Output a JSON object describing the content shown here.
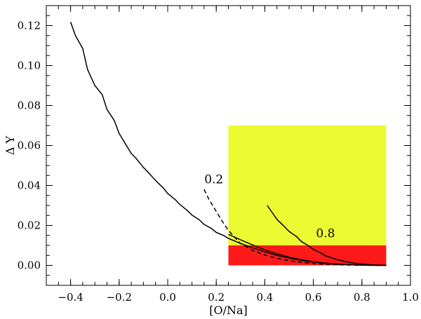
{
  "chart_data": {
    "type": "line",
    "title": "",
    "xlabel": "[O/Na]",
    "ylabel": "Δ Y",
    "xlim": [
      -0.5,
      1.0
    ],
    "ylim": [
      -0.01,
      0.13
    ],
    "xticks": [
      -0.4,
      -0.2,
      0.0,
      0.2,
      0.4,
      0.6,
      0.8,
      1.0
    ],
    "xtick_labels": [
      "−0.4",
      "−0.2",
      "0.0",
      "0.2",
      "0.4",
      "0.6",
      "0.8",
      "1.0"
    ],
    "yticks": [
      0.0,
      0.02,
      0.04,
      0.06,
      0.08,
      0.1,
      0.12
    ],
    "ytick_labels": [
      "0.00",
      "0.02",
      "0.04",
      "0.06",
      "0.08",
      "0.10",
      "0.12"
    ],
    "grid": false,
    "regions": [
      {
        "x": [
          0.25,
          0.9
        ],
        "y": [
          0.01,
          0.07
        ],
        "color": "#ecfa32"
      },
      {
        "x": [
          0.25,
          0.9
        ],
        "y": [
          0.0,
          0.01
        ],
        "color": "#ff1a1a"
      }
    ],
    "series": [
      {
        "style": "solid",
        "x": [
          -0.4,
          -0.38,
          -0.35,
          -0.33,
          -0.3,
          -0.27,
          -0.25,
          -0.22,
          -0.2,
          -0.18,
          -0.15,
          -0.13,
          -0.1,
          -0.07,
          -0.05,
          -0.02,
          0.0,
          0.03,
          0.05,
          0.08,
          0.1,
          0.13,
          0.15,
          0.18,
          0.2,
          0.23,
          0.25,
          0.3,
          0.35,
          0.4,
          0.45,
          0.5,
          0.55,
          0.6,
          0.65,
          0.7,
          0.75,
          0.8,
          0.85,
          0.9
        ],
        "y": [
          0.1218,
          0.115,
          0.1085,
          0.098,
          0.09,
          0.0855,
          0.078,
          0.0725,
          0.066,
          0.062,
          0.056,
          0.0535,
          0.049,
          0.0452,
          0.0425,
          0.039,
          0.036,
          0.033,
          0.0305,
          0.0275,
          0.0252,
          0.0228,
          0.0205,
          0.0185,
          0.0165,
          0.015,
          0.0135,
          0.011,
          0.0088,
          0.0068,
          0.005,
          0.0036,
          0.0025,
          0.0017,
          0.0011,
          0.0006,
          0.0003,
          0.0001,
          3e-05,
          0.0
        ]
      },
      {
        "style": "dashed",
        "x": [
          0.15,
          0.17,
          0.2,
          0.23,
          0.25,
          0.28,
          0.3,
          0.35,
          0.4,
          0.45,
          0.5,
          0.55,
          0.6,
          0.65,
          0.7,
          0.75,
          0.8,
          0.85,
          0.9
        ],
        "y": [
          0.038,
          0.033,
          0.027,
          0.021,
          0.0175,
          0.0135,
          0.011,
          0.0075,
          0.0052,
          0.0035,
          0.0023,
          0.0015,
          0.0009,
          0.0005,
          0.0003,
          0.00015,
          7e-05,
          2e-05,
          0.0
        ]
      },
      {
        "style": "solid",
        "x": [
          0.25,
          0.3,
          0.35,
          0.4,
          0.45,
          0.5,
          0.55,
          0.6,
          0.65,
          0.7,
          0.75,
          0.8,
          0.85,
          0.9
        ],
        "y": [
          0.0155,
          0.0128,
          0.0102,
          0.0078,
          0.0058,
          0.0041,
          0.0028,
          0.0018,
          0.0011,
          0.0006,
          0.0003,
          0.0001,
          3e-05,
          0.0
        ]
      },
      {
        "style": "solid",
        "x": [
          0.41,
          0.43,
          0.45,
          0.48,
          0.5,
          0.53,
          0.55,
          0.58,
          0.6,
          0.63,
          0.65,
          0.7,
          0.75,
          0.8,
          0.85,
          0.9
        ],
        "y": [
          0.03,
          0.0265,
          0.023,
          0.0195,
          0.017,
          0.0145,
          0.012,
          0.0098,
          0.008,
          0.0062,
          0.0048,
          0.0028,
          0.0014,
          0.0006,
          0.0002,
          0.0
        ]
      }
    ],
    "annotations": [
      {
        "text": "0.2",
        "x": 0.19,
        "y": 0.041
      },
      {
        "text": "0.8",
        "x": 0.65,
        "y": 0.014
      }
    ]
  }
}
